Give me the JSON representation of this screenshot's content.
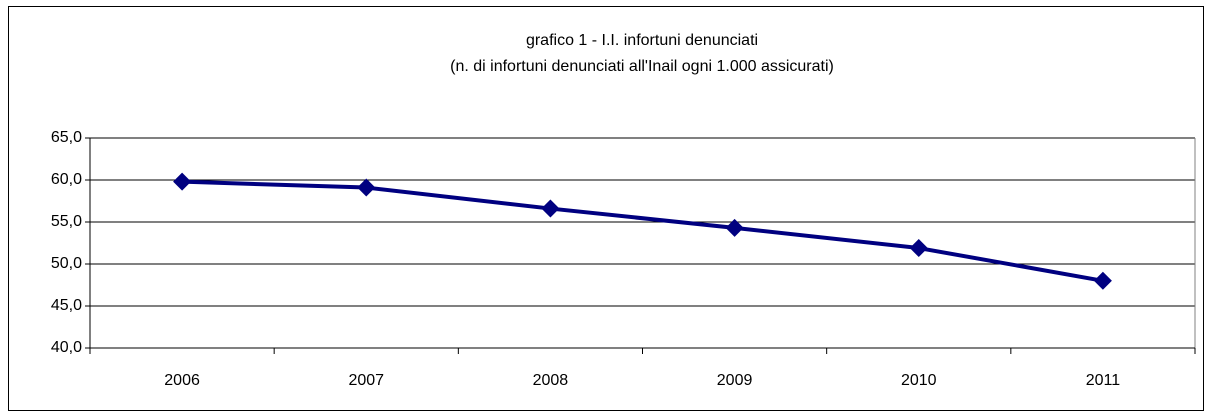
{
  "chart_data": {
    "type": "line",
    "title": "grafico 1 - I.I. infortuni denunciati",
    "subtitle": "(n. di infortuni denunciati all'Inail ogni 1.000 assicurati)",
    "categories": [
      "2006",
      "2007",
      "2008",
      "2009",
      "2010",
      "2011"
    ],
    "values": [
      59.8,
      59.1,
      56.6,
      54.3,
      51.9,
      48.0
    ],
    "color": "#000080",
    "ylim": [
      40,
      65
    ],
    "yticks": [
      {
        "value": 40,
        "label": "40,0"
      },
      {
        "value": 45,
        "label": "45,0"
      },
      {
        "value": 50,
        "label": "50,0"
      },
      {
        "value": 55,
        "label": "55,0"
      },
      {
        "value": 60,
        "label": "60,0"
      },
      {
        "value": 65,
        "label": "65,0"
      }
    ],
    "grid": true
  }
}
